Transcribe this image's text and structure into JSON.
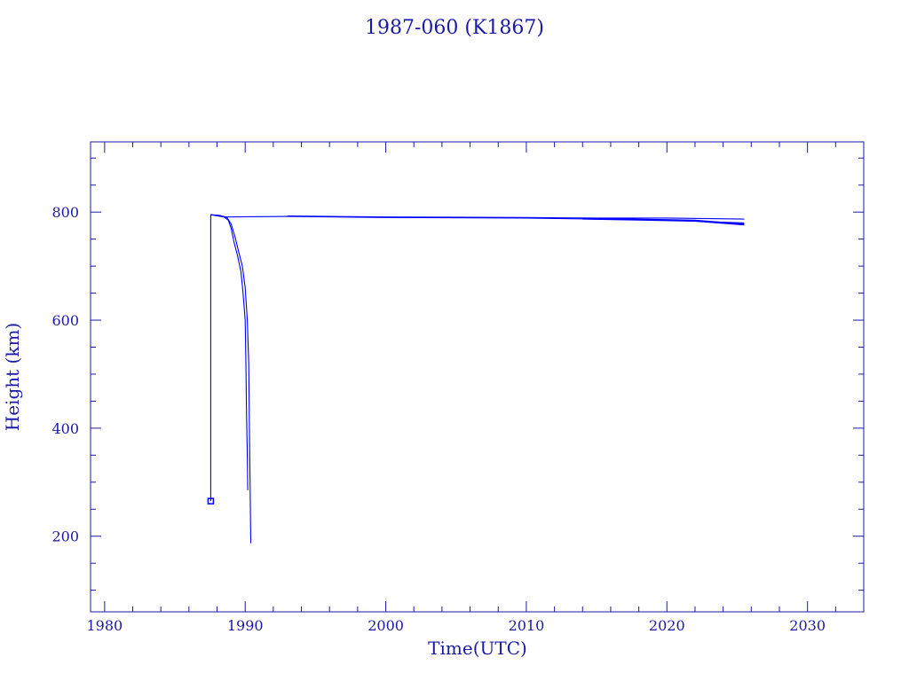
{
  "chart_data": {
    "type": "line",
    "title": "1987-060 (K1867)",
    "xlabel": "Time(UTC)",
    "ylabel": "Height (km)",
    "xlim": [
      1979,
      2034
    ],
    "ylim": [
      60,
      930
    ],
    "x_ticks": [
      1980,
      1990,
      2000,
      2010,
      2020,
      2030
    ],
    "y_ticks": [
      200,
      400,
      600,
      800
    ],
    "grid": false,
    "legend": "none",
    "colors": {
      "axis": "#1a1aa6",
      "series": "#0000ff"
    },
    "series": [
      {
        "points": [
          [
            1987.55,
            265
          ],
          [
            1987.55,
            795
          ],
          [
            1988.5,
            791
          ],
          [
            1993,
            792
          ],
          [
            2000,
            790
          ],
          [
            2010,
            789
          ],
          [
            2015,
            787
          ],
          [
            2020,
            785
          ],
          [
            2025.5,
            780
          ]
        ]
      },
      {
        "points": [
          [
            1987.55,
            795
          ],
          [
            1988.0,
            794
          ],
          [
            1988.5,
            791
          ],
          [
            1988.8,
            785
          ],
          [
            1989.0,
            770
          ],
          [
            1989.2,
            745
          ],
          [
            1989.45,
            720
          ],
          [
            1989.7,
            690
          ],
          [
            1989.85,
            650
          ],
          [
            1990.0,
            600
          ],
          [
            1990.05,
            520
          ],
          [
            1990.1,
            420
          ],
          [
            1990.15,
            350
          ],
          [
            1990.18,
            285
          ]
        ]
      },
      {
        "points": [
          [
            1987.55,
            795
          ],
          [
            1988.2,
            794
          ],
          [
            1988.7,
            790
          ],
          [
            1989.0,
            778
          ],
          [
            1989.3,
            752
          ],
          [
            1989.55,
            725
          ],
          [
            1989.8,
            700
          ],
          [
            1990.0,
            660
          ],
          [
            1990.15,
            600
          ],
          [
            1990.25,
            520
          ],
          [
            1990.3,
            400
          ],
          [
            1990.35,
            300
          ],
          [
            1990.4,
            187
          ]
        ]
      },
      {
        "points": [
          [
            1993,
            793
          ],
          [
            2000,
            791
          ],
          [
            2010,
            790
          ],
          [
            2015,
            789
          ],
          [
            2020,
            789
          ],
          [
            2025.5,
            787
          ]
        ]
      },
      {
        "points": [
          [
            2014,
            788
          ],
          [
            2018,
            786
          ],
          [
            2022,
            784
          ],
          [
            2025.5,
            777
          ]
        ]
      }
    ]
  }
}
